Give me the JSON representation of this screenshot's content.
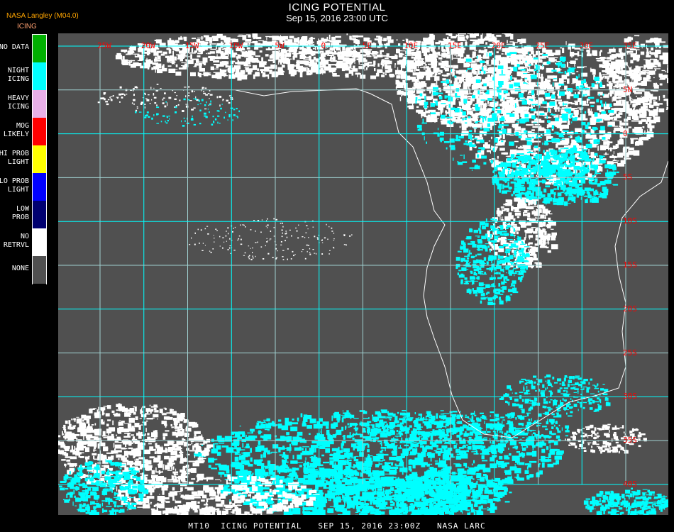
{
  "header": {
    "title": "ICING POTENTIAL",
    "subtitle": "Sep 15, 2016 23:00 UTC",
    "producer": "NASA Langley (M04.0)"
  },
  "legend": {
    "title": "ICING",
    "items": [
      {
        "label": "NO DATA",
        "color": "#00b000"
      },
      {
        "label": "NIGHT ICING",
        "color": "#00ffff"
      },
      {
        "label": "HEAVY ICING",
        "color": "#e8b0e8"
      },
      {
        "label": "MOG LIKELY",
        "color": "#ff0000"
      },
      {
        "label": "HI PROB LIGHT",
        "color": "#ffff00"
      },
      {
        "label": "LO PROB LIGHT",
        "color": "#0000ff"
      },
      {
        "label": "LOW PROB",
        "color": "#000070"
      },
      {
        "label": "NO RETRVL",
        "color": "#ffffff"
      },
      {
        "label": "NONE",
        "color": "#505050"
      }
    ]
  },
  "map": {
    "grid_color": "#00ffff",
    "label_color": "#ff0000",
    "longitudes": [
      "25W",
      "20W",
      "15W",
      "10W",
      "5W",
      "0",
      "5E",
      "10E",
      "15E",
      "20E",
      "25E",
      "30E",
      "35E"
    ],
    "latitudes": [
      "5N",
      "0",
      "5S",
      "10S",
      "15S",
      "20S",
      "25S",
      "30S",
      "35S",
      "40S"
    ]
  },
  "footer": "MT10  ICING POTENTIAL   SEP 15, 2016 23:00Z   NASA LARC"
}
